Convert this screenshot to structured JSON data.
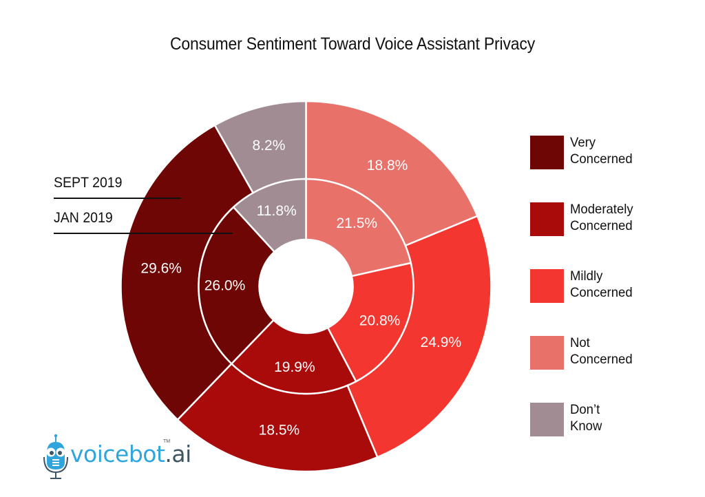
{
  "chart_data": {
    "type": "pie",
    "subtype": "nested-donut",
    "title": "Consumer Sentiment Toward Voice Assistant Privacy",
    "start": "12 o'clock, clockwise",
    "categories": [
      "Not Concerned",
      "Mildly Concerned",
      "Moderately Concerned",
      "Very Concerned",
      "Don't Know"
    ],
    "colors": {
      "Not Concerned": "#e8716a",
      "Mildly Concerned": "#f33630",
      "Moderately Concerned": "#a90a0a",
      "Very Concerned": "#6f0606",
      "Don't Know": "#a08c92"
    },
    "series": [
      {
        "name": "SEPT 2019",
        "ring": "outer",
        "values": [
          18.8,
          24.9,
          18.5,
          29.6,
          8.2
        ],
        "labels": [
          "18.8%",
          "24.9%",
          "18.5%",
          "29.6%",
          "8.2%"
        ]
      },
      {
        "name": "JAN 2019",
        "ring": "inner",
        "values": [
          21.5,
          20.8,
          19.9,
          26.0,
          11.8
        ],
        "labels": [
          "21.5%",
          "20.8%",
          "19.9%",
          "26.0%",
          "11.8%"
        ]
      }
    ],
    "legend": {
      "placement": "right",
      "items": [
        {
          "label": "Very Concerned",
          "line1": "Very",
          "line2": "Concerned",
          "color": "#6f0606"
        },
        {
          "label": "Moderately Concerned",
          "line1": "Moderately",
          "line2": "Concerned",
          "color": "#a90a0a"
        },
        {
          "label": "Mildly Concerned",
          "line1": "Mildly",
          "line2": "Concerned",
          "color": "#f33630"
        },
        {
          "label": "Not Concerned",
          "line1": "Not",
          "line2": "Concerned",
          "color": "#e8716a"
        },
        {
          "label": "Don't Know",
          "line1": "Don’t",
          "line2": "Know",
          "color": "#a08c92"
        }
      ]
    },
    "ring_labels": {
      "outer": "SEPT 2019",
      "inner": "JAN 2019"
    }
  },
  "branding": {
    "logo_name": "voicebot",
    "logo_suffix": ".ai",
    "trademark": "TM"
  }
}
